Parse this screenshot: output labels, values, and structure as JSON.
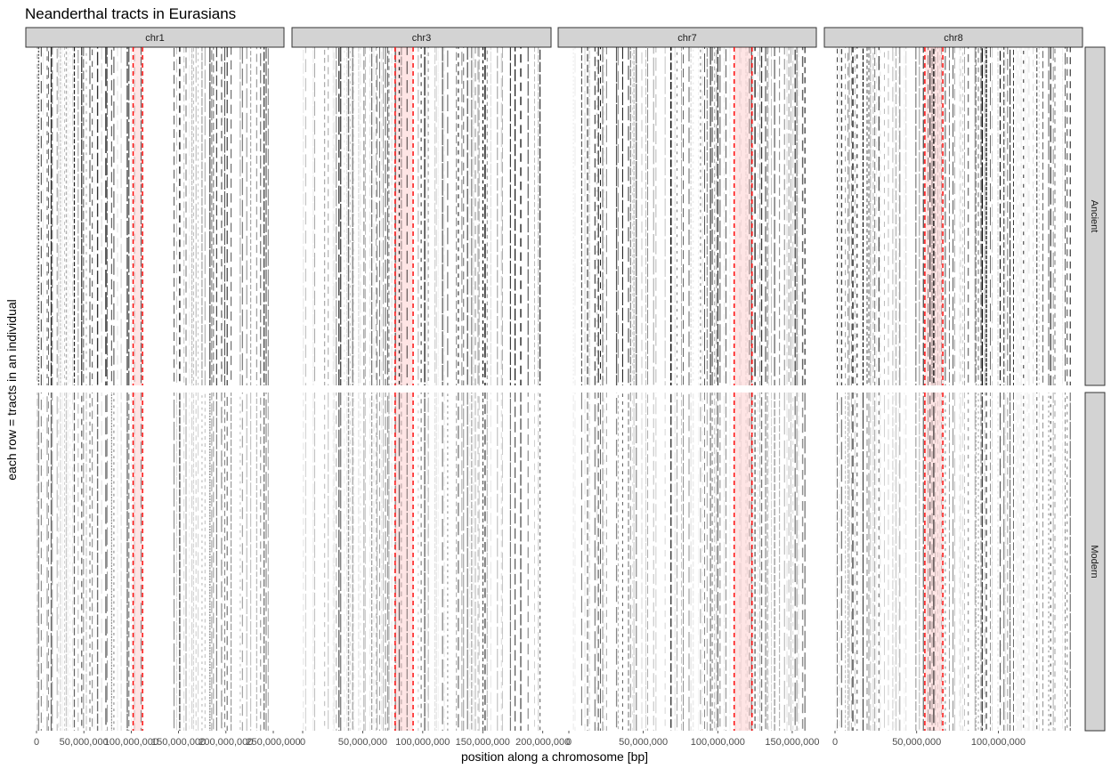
{
  "chart_data": {
    "type": "heatmap",
    "title": "Neanderthal tracts in Eurasians",
    "xlabel": "position along a chromosome [bp]",
    "ylabel": "each row = tracts in an individual",
    "row_facets": [
      "Ancient",
      "Modern"
    ],
    "highlight_color": "#ff0000",
    "tract_color": "#000000",
    "panels": [
      {
        "chromosome": "chr1",
        "xlim": [
          0,
          250000000
        ],
        "ticks": [
          {
            "value": 0,
            "label": "0"
          },
          {
            "value": 50000000,
            "label": "50,000,000"
          },
          {
            "value": 100000000,
            "label": "100,000,000"
          },
          {
            "value": 150000000,
            "label": "150,000,000"
          },
          {
            "value": 200000000,
            "label": "200,000,000"
          },
          {
            "value": 250000000,
            "label": "250,000,000"
          }
        ],
        "highlight": [
          102000000,
          112000000
        ],
        "gaps": [
          [
            113000000,
            143000000
          ]
        ]
      },
      {
        "chromosome": "chr3",
        "xlim": [
          0,
          198000000
        ],
        "ticks": [
          {
            "value": 0,
            "label": "0"
          },
          {
            "value": 50000000,
            "label": "50,000,000"
          },
          {
            "value": 100000000,
            "label": "100,000,000"
          },
          {
            "value": 150000000,
            "label": "150,000,000"
          },
          {
            "value": 200000000,
            "label": "200,000,000"
          }
        ],
        "highlight": [
          77000000,
          92000000
        ],
        "gaps": [
          [
            89000000,
            95000000
          ]
        ]
      },
      {
        "chromosome": "chr7",
        "xlim": [
          0,
          159000000
        ],
        "ticks": [
          {
            "value": 0,
            "label": "0"
          },
          {
            "value": 50000000,
            "label": "50,000,000"
          },
          {
            "value": 100000000,
            "label": "100,000,000"
          },
          {
            "value": 150000000,
            "label": "150,000,000"
          }
        ],
        "highlight": [
          111000000,
          123000000
        ],
        "gaps": [
          [
            58000000,
            62000000
          ]
        ]
      },
      {
        "chromosome": "chr8",
        "xlim": [
          0,
          145000000
        ],
        "ticks": [
          {
            "value": 0,
            "label": "0"
          },
          {
            "value": 50000000,
            "label": "50,000,000"
          },
          {
            "value": 100000000,
            "label": "100,000,000"
          }
        ],
        "highlight": [
          55000000,
          66000000
        ],
        "gaps": [
          [
            44000000,
            47000000
          ]
        ]
      }
    ],
    "grid": false,
    "legend": "none"
  }
}
